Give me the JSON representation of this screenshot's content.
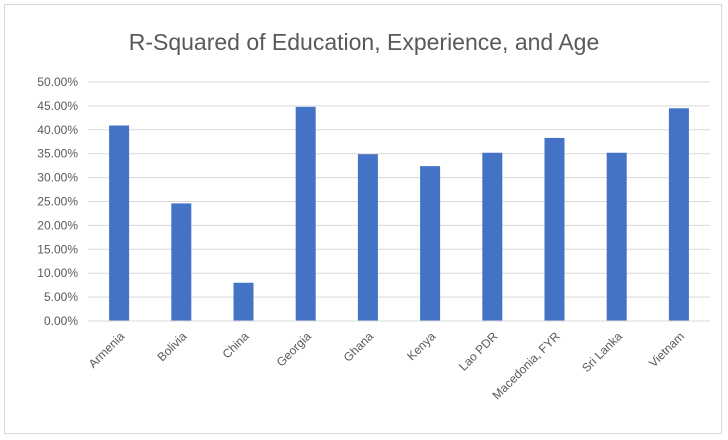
{
  "chart_data": {
    "type": "bar",
    "title": "R-Squared of Education, Experience, and Age",
    "xlabel": "",
    "ylabel": "",
    "categories": [
      "Armenia",
      "Bolivia",
      "China",
      "Georgia",
      "Ghana",
      "Kenya",
      "Lao PDR",
      "Macedonia, FYR",
      "Sri Lanka",
      "Vietnam"
    ],
    "values": [
      40.9,
      24.6,
      8.0,
      44.8,
      34.9,
      32.4,
      35.2,
      38.3,
      35.2,
      44.5
    ],
    "ylim": [
      0,
      50
    ],
    "yticks": [
      "0.00%",
      "5.00%",
      "10.00%",
      "15.00%",
      "20.00%",
      "25.00%",
      "30.00%",
      "35.00%",
      "40.00%",
      "45.00%",
      "50.00%"
    ],
    "ytick_values": [
      0,
      5,
      10,
      15,
      20,
      25,
      30,
      35,
      40,
      45,
      50
    ],
    "grid": true,
    "legend": "none",
    "colors": {
      "bar": "#4472c4",
      "grid": "#d9d9d9",
      "text": "#595959"
    }
  }
}
